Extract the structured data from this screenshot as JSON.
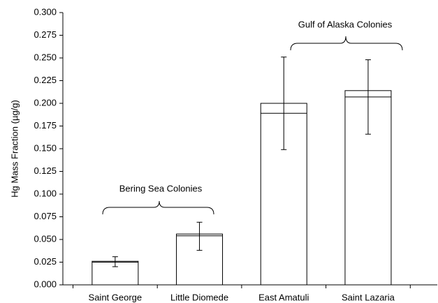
{
  "chart_data": {
    "type": "bar",
    "y_label": "Hg Mass Fraction (µg/g)",
    "categories": [
      "Saint George",
      "Little Diomede",
      "East Amatuli",
      "Saint Lazaria"
    ],
    "values": [
      0.026,
      0.056,
      0.2,
      0.214
    ],
    "inner_values": [
      0.025,
      0.054,
      0.189,
      0.207
    ],
    "error_lower": [
      0.02,
      0.038,
      0.149,
      0.166
    ],
    "error_upper": [
      0.031,
      0.069,
      0.251,
      0.248
    ],
    "color": "#ffffff",
    "ylim": [
      0,
      0.3
    ],
    "yticks": [
      {
        "value": 0,
        "label": "0.000"
      },
      {
        "value": 0.025,
        "label": "0.025"
      },
      {
        "value": 0.05,
        "label": "0.050"
      },
      {
        "value": 0.075,
        "label": "0.075"
      },
      {
        "value": 0.1,
        "label": "0.100"
      },
      {
        "value": 0.125,
        "label": "0.125"
      },
      {
        "value": 0.15,
        "label": "0.150"
      },
      {
        "value": 0.175,
        "label": "0.175"
      },
      {
        "value": 0.2,
        "label": "0.200"
      },
      {
        "value": 0.225,
        "label": "0.225"
      },
      {
        "value": 0.25,
        "label": "0.250"
      },
      {
        "value": 0.275,
        "label": "0.275"
      },
      {
        "value": 0.3,
        "label": "0.300"
      }
    ],
    "annotations": [
      "Bering Sea Colonies",
      "Gulf of Alaska Colonies"
    ]
  }
}
